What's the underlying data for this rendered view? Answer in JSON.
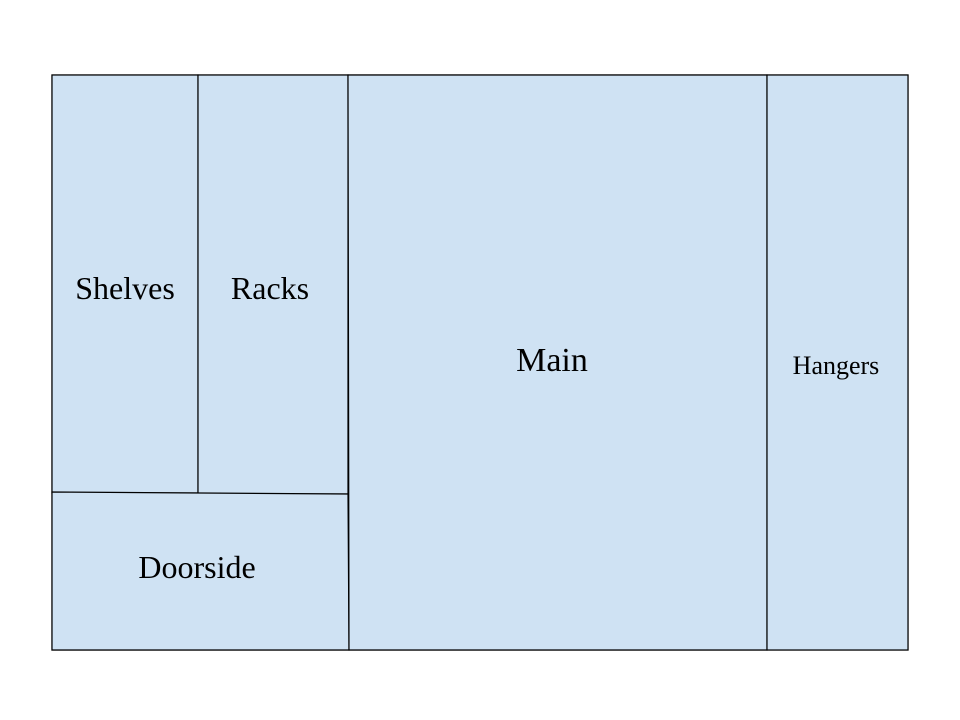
{
  "colors": {
    "zone_fill": "#cfe2f3",
    "border": "#000000",
    "background": "#ffffff"
  },
  "zones": {
    "shelves": "Shelves",
    "racks": "Racks",
    "doorside": "Doorside",
    "main": "Main",
    "hangers": "Hangers"
  }
}
